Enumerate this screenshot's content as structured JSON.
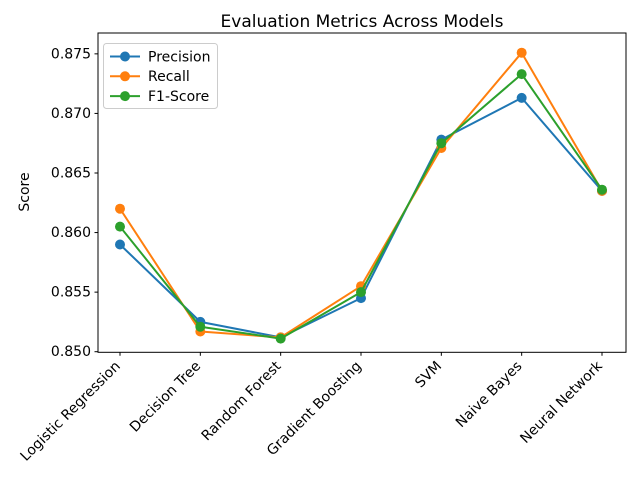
{
  "figure": {
    "background": "#ffffff",
    "axis_color": "#000000",
    "text_color": "#000000",
    "legend_border_color": "#cccccc",
    "legend_background": "#ffffff"
  },
  "chart_data": {
    "type": "line",
    "title": "Evaluation Metrics Across Models",
    "xlabel": "",
    "ylabel": "Score",
    "categories": [
      "Logistic Regression",
      "Decision Tree",
      "Random Forest",
      "Gradient Boosting",
      "SVM",
      "Naive Bayes",
      "Neural Network"
    ],
    "series": [
      {
        "name": "Precision",
        "color": "#1f77b4",
        "values": [
          0.859,
          0.8525,
          0.8512,
          0.8545,
          0.8678,
          0.8713,
          0.8635
        ]
      },
      {
        "name": "Recall",
        "color": "#ff7f0e",
        "values": [
          0.862,
          0.8517,
          0.8512,
          0.8555,
          0.8671,
          0.8751,
          0.8635
        ]
      },
      {
        "name": "F1-Score",
        "color": "#2ca02c",
        "values": [
          0.8605,
          0.8521,
          0.8511,
          0.855,
          0.8675,
          0.8733,
          0.8636
        ]
      }
    ],
    "ylim": [
      0.84995,
      0.87675
    ],
    "ytick_labels": [
      "0.850",
      "0.855",
      "0.860",
      "0.865",
      "0.870",
      "0.875"
    ],
    "grid": false,
    "legend_position": "upper left",
    "marker": "circle",
    "x_tick_rotation_deg": 45
  }
}
